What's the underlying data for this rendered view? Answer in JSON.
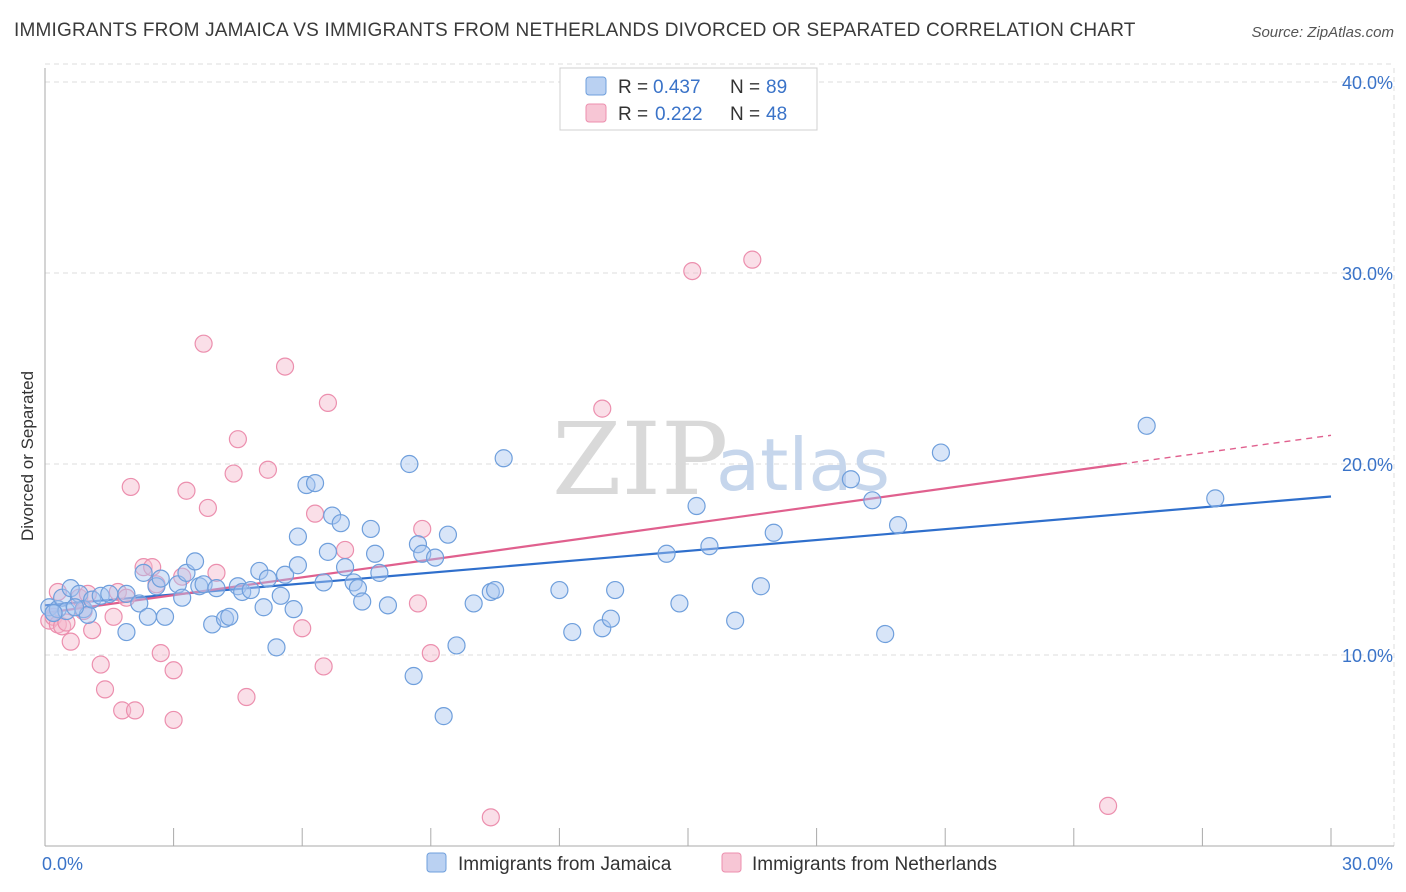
{
  "header": {
    "title": "IMMIGRANTS FROM JAMAICA VS IMMIGRANTS FROM NETHERLANDS DIVORCED OR SEPARATED CORRELATION CHART",
    "source": "Source: ZipAtlas.com"
  },
  "watermark": {
    "zip": "ZIP",
    "atlas": "atlas"
  },
  "legend": {
    "rows": [
      {
        "r_label": "R =",
        "r_value": "0.437",
        "n_label": "N =",
        "n_value": "89"
      },
      {
        "r_label": "R =",
        "r_value": "0.222",
        "n_label": "N =",
        "n_value": "48"
      }
    ]
  },
  "bottom_legend": {
    "items": [
      {
        "label": "Immigrants from Jamaica"
      },
      {
        "label": "Immigrants from Netherlands"
      }
    ]
  },
  "colors": {
    "jamaica_fill": "#a9c6ef",
    "jamaica_stroke": "#6f9fdc",
    "jamaica_line": "#2f6fcc",
    "netherlands_fill": "#f5b8cb",
    "netherlands_stroke": "#ec8fae",
    "netherlands_line": "#e0608e",
    "tick_text": "#3a73c8",
    "grid": "#dddddd"
  },
  "chart_data": {
    "type": "scatter",
    "title": "IMMIGRANTS FROM JAMAICA VS IMMIGRANTS FROM NETHERLANDS DIVORCED OR SEPARATED CORRELATION CHART",
    "xlabel": "",
    "ylabel": "Divorced or Separated",
    "xlim": [
      0,
      30
    ],
    "ylim": [
      0,
      42
    ],
    "x_tick_labels": [
      "0.0%",
      "30.0%"
    ],
    "y_ticks": [
      10,
      20,
      30,
      40
    ],
    "y_tick_labels": [
      "10.0%",
      "20.0%",
      "30.0%",
      "40.0%"
    ],
    "grid": true,
    "legend_position": "top-center",
    "series": [
      {
        "name": "Immigrants from Jamaica",
        "R": 0.437,
        "N": 89,
        "trend": {
          "x": [
            0,
            30
          ],
          "y": [
            12.6,
            18.3
          ]
        },
        "points": [
          [
            0.1,
            12.5
          ],
          [
            0.2,
            12.2
          ],
          [
            0.3,
            12.4
          ],
          [
            0.4,
            13.0
          ],
          [
            0.5,
            12.3
          ],
          [
            0.6,
            13.5
          ],
          [
            0.8,
            13.2
          ],
          [
            0.9,
            12.4
          ],
          [
            1.0,
            12.1
          ],
          [
            1.1,
            12.9
          ],
          [
            1.3,
            13.1
          ],
          [
            1.5,
            13.2
          ],
          [
            1.9,
            13.2
          ],
          [
            1.9,
            11.2
          ],
          [
            2.2,
            12.7
          ],
          [
            2.3,
            14.3
          ],
          [
            2.4,
            12.0
          ],
          [
            2.6,
            13.6
          ],
          [
            2.7,
            14.0
          ],
          [
            2.8,
            12.0
          ],
          [
            3.1,
            13.7
          ],
          [
            3.2,
            13.0
          ],
          [
            3.3,
            14.3
          ],
          [
            3.5,
            14.9
          ],
          [
            3.6,
            13.6
          ],
          [
            3.7,
            13.7
          ],
          [
            3.9,
            11.6
          ],
          [
            4.0,
            13.5
          ],
          [
            4.2,
            11.9
          ],
          [
            4.3,
            12.0
          ],
          [
            4.5,
            13.6
          ],
          [
            4.6,
            13.3
          ],
          [
            4.8,
            13.4
          ],
          [
            5.0,
            14.4
          ],
          [
            5.1,
            12.5
          ],
          [
            5.2,
            14.0
          ],
          [
            5.4,
            10.4
          ],
          [
            5.5,
            13.1
          ],
          [
            5.6,
            14.2
          ],
          [
            5.8,
            12.4
          ],
          [
            5.9,
            16.2
          ],
          [
            5.9,
            14.7
          ],
          [
            6.1,
            18.9
          ],
          [
            6.3,
            19.0
          ],
          [
            6.5,
            13.8
          ],
          [
            6.6,
            15.4
          ],
          [
            6.7,
            17.3
          ],
          [
            6.9,
            16.9
          ],
          [
            7.0,
            14.6
          ],
          [
            7.2,
            13.8
          ],
          [
            7.3,
            13.5
          ],
          [
            7.4,
            12.8
          ],
          [
            7.6,
            16.6
          ],
          [
            7.7,
            15.3
          ],
          [
            7.8,
            14.3
          ],
          [
            8.0,
            12.6
          ],
          [
            8.5,
            20.0
          ],
          [
            8.6,
            8.9
          ],
          [
            8.7,
            15.8
          ],
          [
            8.8,
            15.3
          ],
          [
            9.1,
            15.1
          ],
          [
            9.3,
            6.8
          ],
          [
            9.4,
            16.3
          ],
          [
            9.6,
            10.5
          ],
          [
            10.0,
            12.7
          ],
          [
            10.4,
            13.3
          ],
          [
            10.5,
            13.4
          ],
          [
            10.7,
            20.3
          ],
          [
            12.0,
            13.4
          ],
          [
            12.3,
            11.2
          ],
          [
            13.0,
            11.4
          ],
          [
            13.2,
            11.9
          ],
          [
            13.3,
            13.4
          ],
          [
            14.5,
            15.3
          ],
          [
            14.8,
            12.7
          ],
          [
            15.2,
            17.8
          ],
          [
            15.5,
            15.7
          ],
          [
            16.1,
            11.8
          ],
          [
            16.7,
            13.6
          ],
          [
            17.0,
            16.4
          ],
          [
            18.8,
            19.2
          ],
          [
            19.3,
            18.1
          ],
          [
            19.6,
            11.1
          ],
          [
            19.9,
            16.8
          ],
          [
            20.9,
            20.6
          ],
          [
            25.7,
            22.0
          ],
          [
            27.3,
            18.2
          ],
          [
            0.2,
            12.2
          ],
          [
            0.7,
            12.5
          ]
        ]
      },
      {
        "name": "Immigrants from Netherlands",
        "R": 0.222,
        "N": 48,
        "trend": {
          "x": [
            0,
            25.1
          ],
          "y": [
            12.2,
            20.0
          ]
        },
        "trend_extension": {
          "x": [
            25.1,
            30
          ],
          "y": [
            20.0,
            21.5
          ]
        },
        "points": [
          [
            0.1,
            11.8
          ],
          [
            0.2,
            12.0
          ],
          [
            0.3,
            11.6
          ],
          [
            0.4,
            11.5
          ],
          [
            0.5,
            11.7
          ],
          [
            0.6,
            10.7
          ],
          [
            0.8,
            13.0
          ],
          [
            1.0,
            13.2
          ],
          [
            1.1,
            11.3
          ],
          [
            1.3,
            9.5
          ],
          [
            1.4,
            8.2
          ],
          [
            1.6,
            12.0
          ],
          [
            1.7,
            13.3
          ],
          [
            1.8,
            7.1
          ],
          [
            1.9,
            13.0
          ],
          [
            2.0,
            18.8
          ],
          [
            2.1,
            7.1
          ],
          [
            2.3,
            14.6
          ],
          [
            2.5,
            14.6
          ],
          [
            2.6,
            13.7
          ],
          [
            2.7,
            10.1
          ],
          [
            3.0,
            6.6
          ],
          [
            3.0,
            9.2
          ],
          [
            3.2,
            14.1
          ],
          [
            3.3,
            18.6
          ],
          [
            3.7,
            26.3
          ],
          [
            3.8,
            17.7
          ],
          [
            4.0,
            14.3
          ],
          [
            4.4,
            19.5
          ],
          [
            4.5,
            21.3
          ],
          [
            4.7,
            7.8
          ],
          [
            5.2,
            19.7
          ],
          [
            5.6,
            25.1
          ],
          [
            6.0,
            11.4
          ],
          [
            6.3,
            17.4
          ],
          [
            6.5,
            9.4
          ],
          [
            6.6,
            23.2
          ],
          [
            7.0,
            15.5
          ],
          [
            8.7,
            12.7
          ],
          [
            8.8,
            16.6
          ],
          [
            9.0,
            10.1
          ],
          [
            10.4,
            1.5
          ],
          [
            13.0,
            22.9
          ],
          [
            15.1,
            30.1
          ],
          [
            16.5,
            30.7
          ],
          [
            24.8,
            2.1
          ],
          [
            0.3,
            13.3
          ],
          [
            0.9,
            12.3
          ]
        ]
      }
    ]
  }
}
